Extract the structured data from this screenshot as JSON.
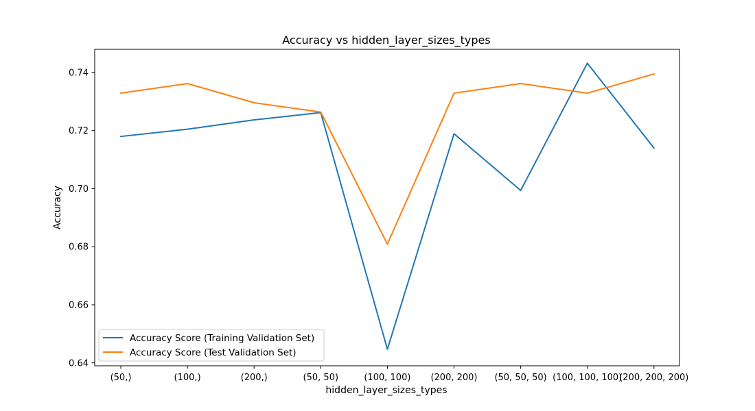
{
  "chart_data": {
    "type": "line",
    "title": "Accuracy vs hidden_layer_sizes_types",
    "xlabel": "hidden_layer_sizes_types",
    "ylabel": "Accuracy",
    "categories": [
      "(50,)",
      "(100,)",
      "(200,)",
      "(50, 50)",
      "(100, 100)",
      "(200, 200)",
      "(50, 50, 50)",
      "(100, 100, 100)",
      "(200, 200, 200)"
    ],
    "ylim": [
      0.639,
      0.748
    ],
    "yticks": [
      0.64,
      0.66,
      0.68,
      0.7,
      0.72,
      0.74
    ],
    "ytick_labels": [
      "0.64",
      "0.66",
      "0.68",
      "0.70",
      "0.72",
      "0.74"
    ],
    "grid": false,
    "legend_position": "lower-left",
    "series": [
      {
        "name": "Accuracy Score (Training Validation Set)",
        "color": "#1f77b4",
        "values": [
          0.718,
          0.7205,
          0.7237,
          0.7262,
          0.6447,
          0.7189,
          0.6994,
          0.7432,
          0.714
        ]
      },
      {
        "name": "Accuracy Score (Test Validation Set)",
        "color": "#ff7f0e",
        "values": [
          0.7329,
          0.7362,
          0.7296,
          0.7264,
          0.6809,
          0.7329,
          0.7362,
          0.7329,
          0.7395
        ]
      }
    ]
  }
}
